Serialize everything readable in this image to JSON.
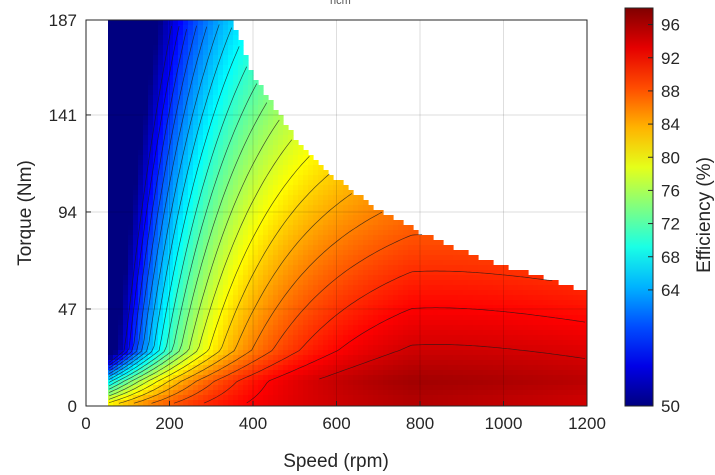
{
  "chart_data": {
    "type": "heatmap",
    "subtitle": "",
    "xlabel": "Speed (rpm)",
    "ylabel": "Torque (Nm)",
    "colorbar_label": "Efficiency (%)",
    "xlim": [
      0,
      1200
    ],
    "ylim": [
      0,
      187
    ],
    "xticks": [
      0,
      200,
      400,
      600,
      800,
      1000,
      1200
    ],
    "yticks": [
      0,
      47,
      94,
      141,
      187
    ],
    "colorbar_range": [
      50,
      98
    ],
    "colorbar_ticks": [
      50,
      64,
      68,
      72,
      76,
      80,
      84,
      88,
      92,
      96
    ],
    "colormap": "jet",
    "grid": true,
    "speed_range_rpm": [
      55,
      1200
    ],
    "max_torque_envelope": [
      {
        "speed": 55,
        "torque": 187
      },
      {
        "speed": 350,
        "torque": 187
      },
      {
        "speed": 400,
        "torque": 160
      },
      {
        "speed": 450,
        "torque": 145
      },
      {
        "speed": 500,
        "torque": 130
      },
      {
        "speed": 600,
        "torque": 110
      },
      {
        "speed": 700,
        "torque": 95
      },
      {
        "speed": 800,
        "torque": 84
      },
      {
        "speed": 900,
        "torque": 75
      },
      {
        "speed": 1000,
        "torque": 68
      },
      {
        "speed": 1100,
        "torque": 62
      },
      {
        "speed": 1200,
        "torque": 55
      }
    ],
    "efficiency_samples": [
      {
        "speed": 100,
        "torque": 150,
        "efficiency": 50
      },
      {
        "speed": 300,
        "torque": 120,
        "efficiency": 64
      },
      {
        "speed": 400,
        "torque": 94,
        "efficiency": 76
      },
      {
        "speed": 600,
        "torque": 80,
        "efficiency": 86
      },
      {
        "speed": 600,
        "torque": 40,
        "efficiency": 92
      },
      {
        "speed": 780,
        "torque": 10,
        "efficiency": 96
      },
      {
        "speed": 1000,
        "torque": 30,
        "efficiency": 92
      },
      {
        "speed": 1100,
        "torque": 50,
        "efficiency": 88
      }
    ],
    "peak_efficiency_region": {
      "speed": [
        720,
        820
      ],
      "torque": [
        5,
        12
      ],
      "efficiency": 96
    }
  },
  "partial_title_fragment": "ncm"
}
